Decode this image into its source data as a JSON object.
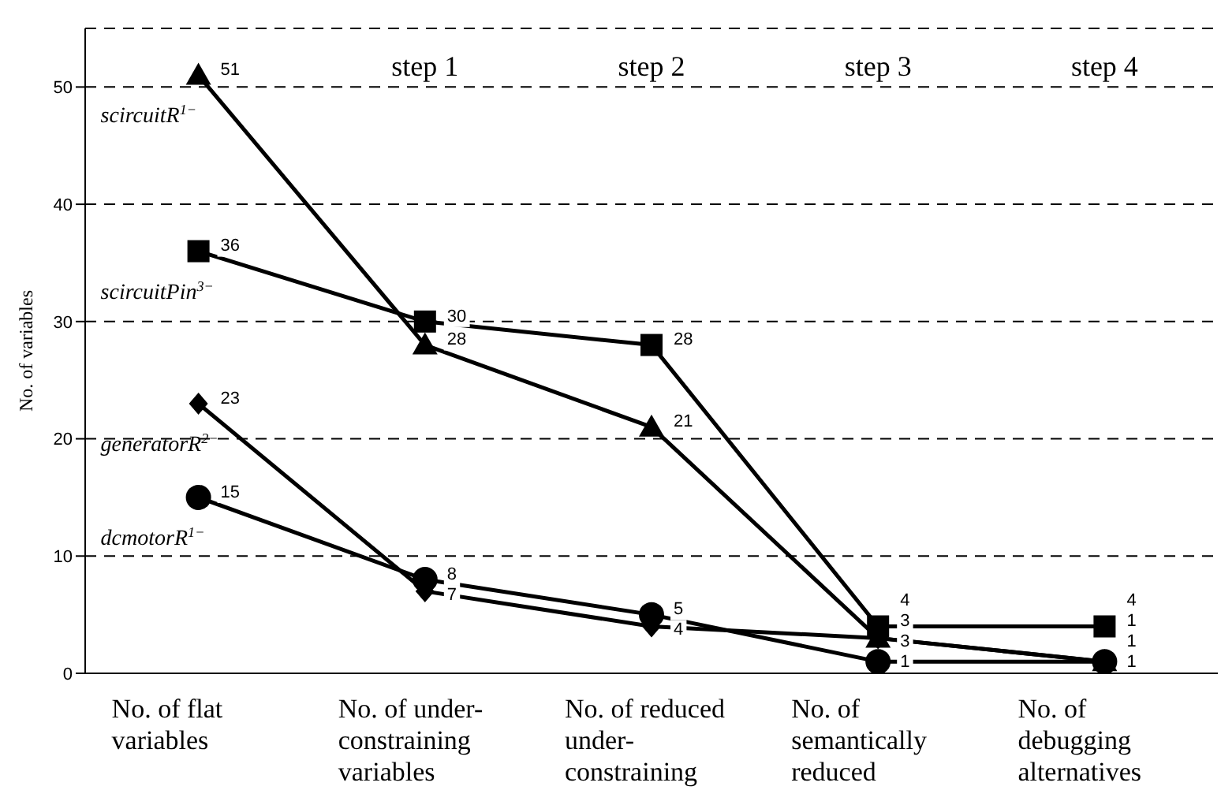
{
  "chart_data": {
    "type": "line",
    "ylabel": "No. of variables",
    "categories": [
      "No. of flat variables",
      "No. of under-constraining variables",
      "No. of reduced under-constraining",
      "No. of semantically reduced",
      "No. of debugging alternatives"
    ],
    "series": [
      {
        "name": "scircuitR$^{1−}$",
        "color": "#000000",
        "marker": "triangle",
        "values": [
          51,
          28,
          21,
          3,
          1
        ]
      },
      {
        "name": "scircuitPin$^{3−}$",
        "color": "#000000",
        "marker": "square",
        "values": [
          36,
          30,
          28,
          4,
          4
        ]
      },
      {
        "name": "generatorR$^{2−}$",
        "color": "#000000",
        "marker": "diamond",
        "values": [
          23,
          7,
          4,
          3,
          1
        ]
      },
      {
        "name": "dcmotorR$^{1−}$",
        "color": "#000000",
        "marker": "circle",
        "values": [
          15,
          8,
          5,
          1,
          1
        ]
      }
    ],
    "ylim": [
      0,
      55
    ],
    "yticks": [
      0,
      10,
      20,
      30,
      40,
      50
    ],
    "grid": "y",
    "legend": false,
    "data_labels": true,
    "line_style": "solid",
    "annotations": [
      "step 1",
      "step 2",
      "step 3",
      "step 4"
    ]
  }
}
